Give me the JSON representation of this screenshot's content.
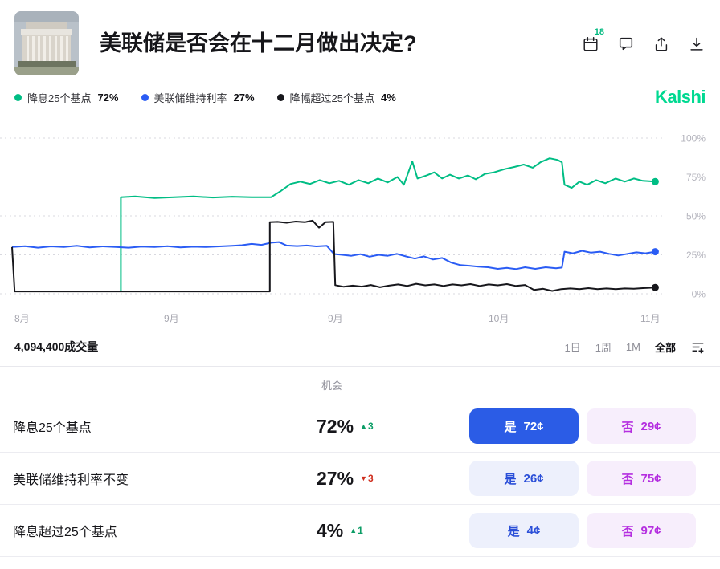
{
  "header": {
    "title": "美联储是否会在十二月做出决定?",
    "calendar_badge": "18"
  },
  "legend": {
    "items": [
      {
        "label": "降息25个基点",
        "value": "72%",
        "color": "#00bd84"
      },
      {
        "label": "美联储维持利率",
        "value": "27%",
        "color": "#2a5cf4"
      },
      {
        "label": "降幅超过25个基点",
        "value": "4%",
        "color": "#17171c"
      }
    ],
    "brand": "Kalshi",
    "brand_color": "#00d991"
  },
  "chart_data": {
    "type": "line",
    "title": "",
    "ylim": [
      0,
      100
    ],
    "grid": "horizontal-dashed",
    "legend_position": "top",
    "y_ticks": [
      "100%",
      "75%",
      "50%",
      "25%",
      "0%"
    ],
    "x_ticks": [
      "8月",
      "9月",
      "9月",
      "10月",
      "11月"
    ],
    "series": [
      {
        "name": "降息25个基点",
        "color": "#00bd84",
        "current": 72,
        "points": [
          [
            16.8,
            2
          ],
          [
            16.8,
            62
          ],
          [
            19,
            62.5
          ],
          [
            22,
            61.5
          ],
          [
            25,
            62
          ],
          [
            28,
            62.5
          ],
          [
            31,
            61.8
          ],
          [
            34,
            62.3
          ],
          [
            37,
            62
          ],
          [
            40,
            62
          ],
          [
            41.5,
            66
          ],
          [
            43,
            70.5
          ],
          [
            44.5,
            72
          ],
          [
            46,
            70.5
          ],
          [
            47.5,
            73
          ],
          [
            49,
            71
          ],
          [
            50.5,
            72.5
          ],
          [
            52,
            70
          ],
          [
            53.5,
            73
          ],
          [
            55,
            71
          ],
          [
            56.5,
            74
          ],
          [
            58,
            71.5
          ],
          [
            59.5,
            75
          ],
          [
            60.5,
            70
          ],
          [
            61.8,
            85
          ],
          [
            62.6,
            74
          ],
          [
            64,
            76
          ],
          [
            65.2,
            78
          ],
          [
            66.4,
            74
          ],
          [
            67.6,
            76.5
          ],
          [
            69,
            74
          ],
          [
            70.4,
            76
          ],
          [
            71.6,
            73.5
          ],
          [
            73,
            77
          ],
          [
            74.4,
            78
          ],
          [
            76,
            80
          ],
          [
            77.6,
            81.5
          ],
          [
            79,
            83
          ],
          [
            80.4,
            81
          ],
          [
            81.6,
            84.5
          ],
          [
            83,
            87
          ],
          [
            84.2,
            86
          ],
          [
            84.9,
            84.5
          ],
          [
            85.3,
            70
          ],
          [
            86.4,
            68
          ],
          [
            87.6,
            72
          ],
          [
            88.8,
            70
          ],
          [
            90.2,
            73
          ],
          [
            91.6,
            71
          ],
          [
            93.2,
            74
          ],
          [
            94.6,
            72
          ],
          [
            96,
            74
          ],
          [
            97.4,
            72.5
          ],
          [
            99.3,
            72
          ]
        ]
      },
      {
        "name": "美联储维持利率",
        "color": "#2a5cf4",
        "current": 27,
        "points": [
          [
            0,
            30
          ],
          [
            2,
            30.5
          ],
          [
            4,
            29.6
          ],
          [
            6,
            30.4
          ],
          [
            8,
            30
          ],
          [
            10,
            30.8
          ],
          [
            12,
            29.8
          ],
          [
            14,
            30.4
          ],
          [
            16,
            30
          ],
          [
            18,
            29.6
          ],
          [
            20,
            30.3
          ],
          [
            22,
            30
          ],
          [
            24,
            30.5
          ],
          [
            26,
            29.8
          ],
          [
            28,
            30.2
          ],
          [
            30,
            30
          ],
          [
            32,
            30.4
          ],
          [
            34,
            30.8
          ],
          [
            35.5,
            31.2
          ],
          [
            37,
            32
          ],
          [
            38.5,
            31.4
          ],
          [
            40,
            32.8
          ],
          [
            41.2,
            33.2
          ],
          [
            42.4,
            31
          ],
          [
            44,
            30.6
          ],
          [
            45.5,
            31
          ],
          [
            47,
            30.4
          ],
          [
            48.6,
            30.8
          ],
          [
            49.7,
            25.5
          ],
          [
            51,
            25
          ],
          [
            52.4,
            24.4
          ],
          [
            53.8,
            25.4
          ],
          [
            55.2,
            23.8
          ],
          [
            56.6,
            25
          ],
          [
            58,
            24.4
          ],
          [
            59.4,
            25.6
          ],
          [
            60.8,
            24
          ],
          [
            62.2,
            22.6
          ],
          [
            63.6,
            24
          ],
          [
            65,
            22
          ],
          [
            66.4,
            23
          ],
          [
            67.8,
            20
          ],
          [
            69.2,
            18.4
          ],
          [
            70.6,
            18
          ],
          [
            72,
            17.4
          ],
          [
            73.5,
            17
          ],
          [
            75,
            16
          ],
          [
            76.4,
            16.6
          ],
          [
            77.8,
            15.8
          ],
          [
            79.2,
            17
          ],
          [
            80.8,
            16
          ],
          [
            82.4,
            17
          ],
          [
            84,
            16.4
          ],
          [
            84.9,
            16.8
          ],
          [
            85.3,
            27
          ],
          [
            86.6,
            26
          ],
          [
            88,
            27.6
          ],
          [
            89.4,
            26.4
          ],
          [
            90.8,
            27
          ],
          [
            92.2,
            25.6
          ],
          [
            93.6,
            24.6
          ],
          [
            95,
            25.6
          ],
          [
            96.4,
            26.6
          ],
          [
            97.8,
            26
          ],
          [
            99.3,
            27
          ]
        ]
      },
      {
        "name": "降幅超过25个基点",
        "color": "#17171c",
        "current": 4,
        "points": [
          [
            0,
            30
          ],
          [
            0.4,
            1.5
          ],
          [
            5,
            1.5
          ],
          [
            10,
            1.5
          ],
          [
            15,
            1.5
          ],
          [
            20,
            1.5
          ],
          [
            25,
            1.5
          ],
          [
            30,
            1.5
          ],
          [
            35,
            1.5
          ],
          [
            39.8,
            1.5
          ],
          [
            39.8,
            46
          ],
          [
            41,
            46.2
          ],
          [
            42.4,
            45.6
          ],
          [
            43.8,
            46.4
          ],
          [
            45.2,
            46
          ],
          [
            46.4,
            47
          ],
          [
            47.4,
            42.5
          ],
          [
            48.4,
            46
          ],
          [
            49.6,
            46.2
          ],
          [
            49.9,
            5.5
          ],
          [
            51.2,
            4.5
          ],
          [
            52.6,
            5.2
          ],
          [
            54,
            4.6
          ],
          [
            55.4,
            5.6
          ],
          [
            56.8,
            4.2
          ],
          [
            58.2,
            5.2
          ],
          [
            59.6,
            6
          ],
          [
            61,
            5
          ],
          [
            62.4,
            6.4
          ],
          [
            63.8,
            5.4
          ],
          [
            65.2,
            6
          ],
          [
            66.6,
            5
          ],
          [
            68,
            6
          ],
          [
            69.4,
            5.4
          ],
          [
            70.8,
            6.2
          ],
          [
            72.2,
            5
          ],
          [
            73.6,
            6
          ],
          [
            75,
            5.4
          ],
          [
            76.4,
            6.2
          ],
          [
            77.8,
            5
          ],
          [
            79.2,
            5.6
          ],
          [
            80.6,
            2.4
          ],
          [
            82,
            3.2
          ],
          [
            83.4,
            1.8
          ],
          [
            84.8,
            3
          ],
          [
            86.2,
            3.4
          ],
          [
            87.6,
            3
          ],
          [
            89,
            3.6
          ],
          [
            90.4,
            3
          ],
          [
            91.8,
            3.4
          ],
          [
            93.2,
            3
          ],
          [
            94.6,
            3.4
          ],
          [
            96,
            3.2
          ],
          [
            97.4,
            3.6
          ],
          [
            99.3,
            4
          ]
        ]
      }
    ]
  },
  "toolbar": {
    "volume": "4,094,400成交量",
    "ranges": [
      {
        "label": "1日",
        "class": "range"
      },
      {
        "label": "1周",
        "class": "range"
      },
      {
        "label": "1M",
        "class": "range"
      },
      {
        "label": "全部",
        "class": "range active"
      }
    ]
  },
  "table": {
    "chance_header": "机会",
    "rows": [
      {
        "label": "降息25个基点",
        "percent": "72%",
        "arrow": "▲",
        "amount": "3",
        "change_class": "chg up",
        "yes_text": "是",
        "yes_price": "72¢",
        "no_text": "否",
        "no_price": "29¢",
        "yes_class": "btn yes solid",
        "no_class": "btn no"
      },
      {
        "label": "美联储维持利率不变",
        "percent": "27%",
        "arrow": "▼",
        "amount": "3",
        "change_class": "chg down",
        "yes_text": "是",
        "yes_price": "26¢",
        "no_text": "否",
        "no_price": "75¢",
        "yes_class": "btn yes",
        "no_class": "btn no"
      },
      {
        "label": "降息超过25个基点",
        "percent": "4%",
        "arrow": "▲",
        "amount": "1",
        "change_class": "chg up",
        "yes_text": "是",
        "yes_price": "4¢",
        "no_text": "否",
        "no_price": "97¢",
        "yes_class": "btn yes",
        "no_class": "btn no"
      }
    ]
  },
  "colors": {
    "accent_blue": "#2b5ce6",
    "accent_green": "#00bd84",
    "accent_purple": "#b52fe0",
    "brand_green": "#00d991",
    "up_green": "#0c9d66",
    "down_red": "#cf2e1e"
  }
}
